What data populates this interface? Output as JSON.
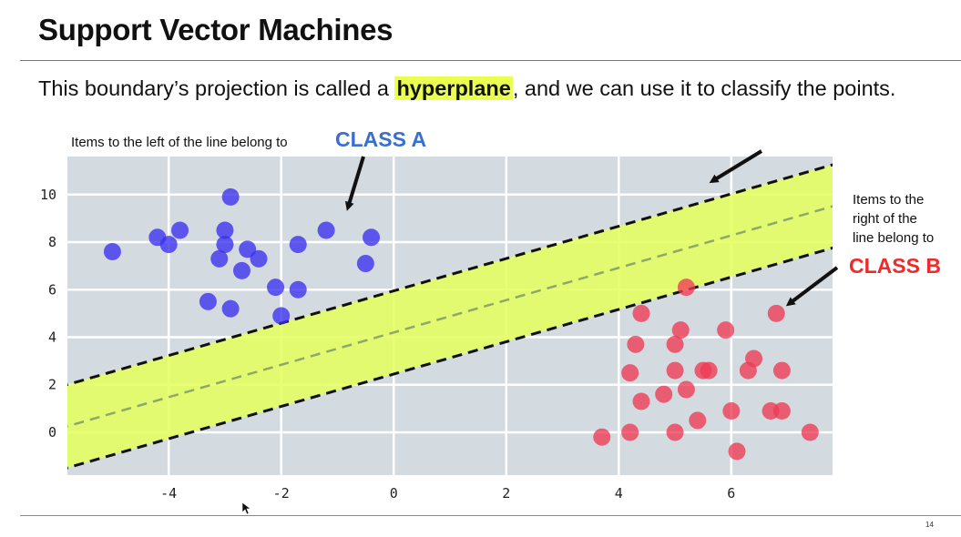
{
  "slide": {
    "title": "Support Vector Machines",
    "subtitle_before": "This boundary’s projection is called a ",
    "subtitle_highlight": "hyperplane",
    "subtitle_after": ", and we can use it to classify the points.",
    "page_number": "14"
  },
  "annotations": {
    "left_text": "Items to the left of the line belong to",
    "class_a": "CLASS A",
    "right_lines": [
      "Items to the",
      "right of the",
      "line belong to"
    ],
    "class_b": "CLASS B"
  },
  "colors": {
    "class_a": "#3a2ff0",
    "class_b": "#f03a55",
    "margin_band": "#e4ff5a",
    "plot_bg": "#d3dbe0",
    "grid": "#ffffff"
  },
  "chart_data": {
    "type": "scatter",
    "title": "",
    "xlabel": "",
    "ylabel": "",
    "xlim": [
      -5.8,
      7.8
    ],
    "ylim": [
      -1.8,
      11.6
    ],
    "xticks": [
      "-4",
      "-2",
      "0",
      "2",
      "4",
      "6"
    ],
    "yticks": [
      "0",
      "2",
      "4",
      "6",
      "8",
      "10"
    ],
    "grid": true,
    "hyperplane": {
      "slope": 0.68,
      "intercept": 4.2
    },
    "margin_offset": 1.75,
    "series": [
      {
        "name": "CLASS A",
        "x": [
          -2.9,
          -3.0,
          -3.8,
          -4.0,
          -4.2,
          -5.0,
          -3.0,
          -2.6,
          -2.4,
          -1.7,
          -3.1,
          -2.7,
          -1.2,
          -0.4,
          -0.5,
          -2.1,
          -1.7,
          -3.3,
          -2.9,
          -2.0
        ],
        "y": [
          9.9,
          8.5,
          8.5,
          7.9,
          8.2,
          7.6,
          7.9,
          7.7,
          7.3,
          7.9,
          7.3,
          6.8,
          8.5,
          8.2,
          7.1,
          6.1,
          6.0,
          5.5,
          5.2,
          4.9
        ]
      },
      {
        "name": "CLASS B",
        "x": [
          5.2,
          6.8,
          4.4,
          5.1,
          5.9,
          4.3,
          5.0,
          4.2,
          5.0,
          5.5,
          5.6,
          6.3,
          6.4,
          6.9,
          4.8,
          5.2,
          4.4,
          6.0,
          6.7,
          6.9,
          3.7,
          4.2,
          5.0,
          5.4,
          7.4,
          6.1
        ],
        "y": [
          6.1,
          5.0,
          5.0,
          4.3,
          4.3,
          3.7,
          3.7,
          2.5,
          2.6,
          2.6,
          2.6,
          2.6,
          3.1,
          2.6,
          1.6,
          1.8,
          1.3,
          0.9,
          0.9,
          0.9,
          -0.2,
          0.0,
          0.0,
          0.5,
          0.0,
          -0.8
        ]
      }
    ]
  }
}
